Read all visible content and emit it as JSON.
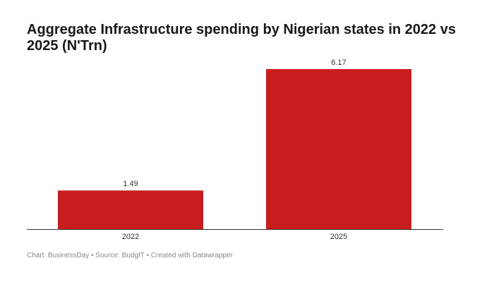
{
  "chart_data": {
    "type": "bar",
    "title": "Aggregate Infrastructure spending by Nigerian states in 2022 vs 2025 (N'Trn)",
    "categories": [
      "2022",
      "2025"
    ],
    "values": [
      1.49,
      6.17
    ],
    "value_labels": [
      "1.49",
      "6.17"
    ],
    "xlabel": "",
    "ylabel": "",
    "ylim": [
      0,
      6.17
    ],
    "grid": false,
    "legend": "none",
    "bar_color": "#c81d1f"
  },
  "footer": {
    "text": "Chart: BusinessDay • Source: BudgIT • Created with Datawrapper"
  }
}
